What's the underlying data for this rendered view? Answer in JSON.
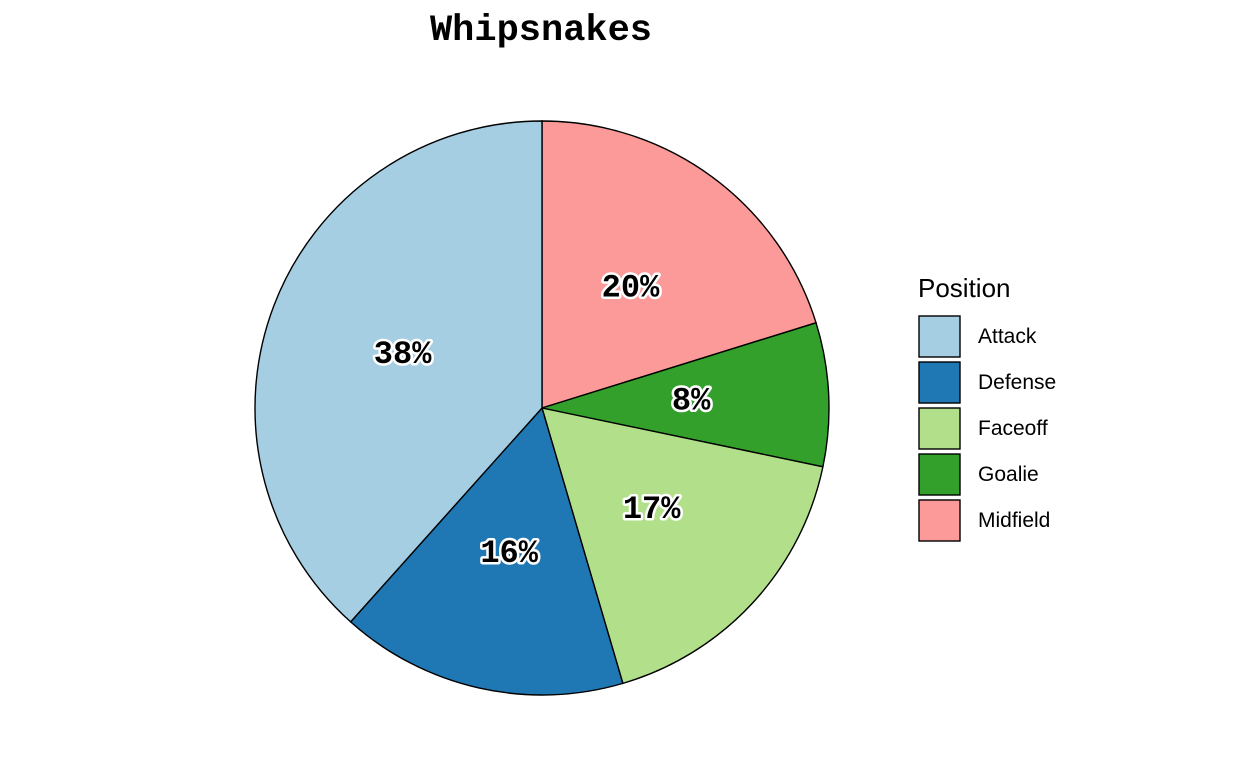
{
  "chart_data": {
    "type": "pie",
    "title": "Whipsnakes",
    "categories": [
      "Attack",
      "Defense",
      "Faceoff",
      "Goalie",
      "Midfield"
    ],
    "values": [
      38,
      16,
      17,
      8,
      20
    ],
    "labels": [
      "38%",
      "16%",
      "17%",
      "8%",
      "20%"
    ],
    "colors": [
      "#a6cee3",
      "#1f78b4",
      "#b2df8a",
      "#33a02c",
      "#fb9a99"
    ],
    "legend": {
      "title": "Position",
      "placement": "right"
    }
  }
}
